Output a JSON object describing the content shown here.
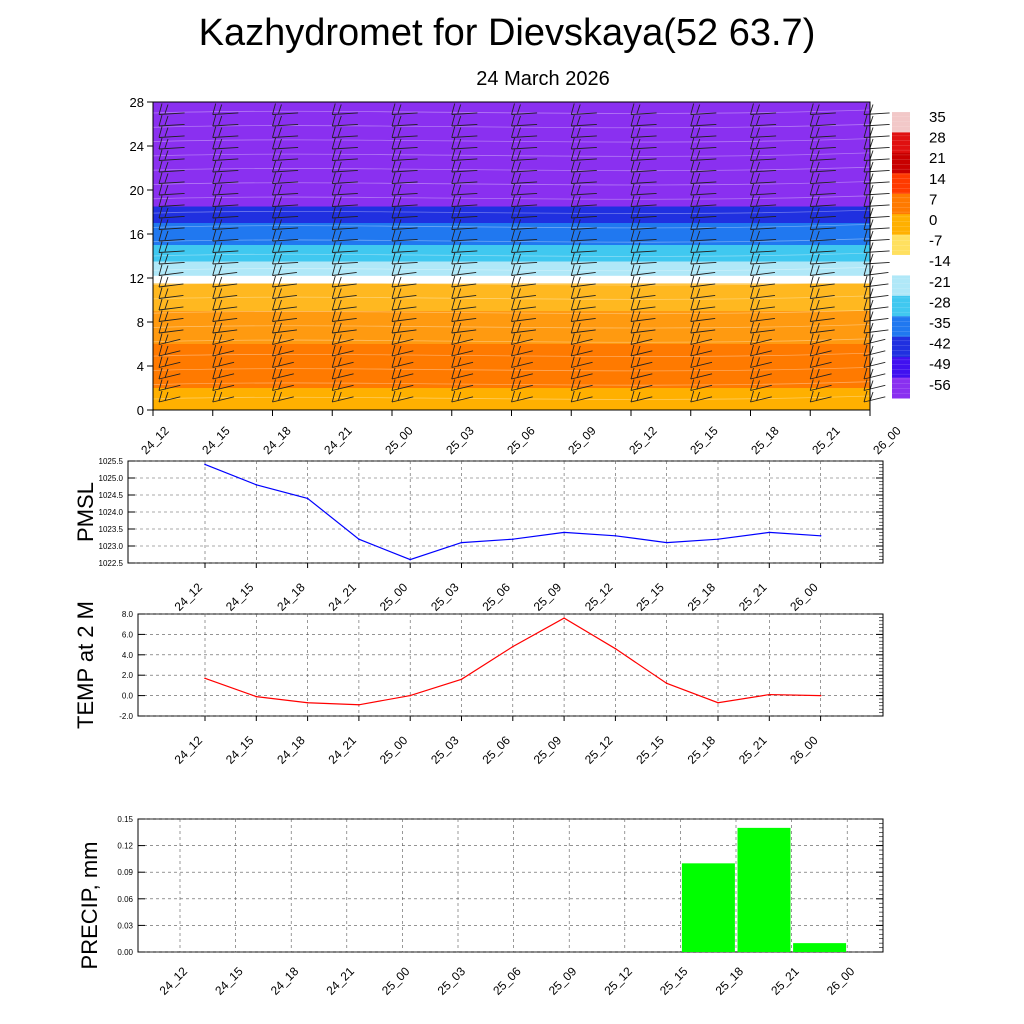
{
  "title": "Kazhydromet for Dievskaya(52 63.7)",
  "subtitle": "24 March 2026",
  "time_labels": [
    "24_12",
    "24_15",
    "24_18",
    "24_21",
    "25_00",
    "25_03",
    "25_06",
    "25_09",
    "25_12",
    "25_15",
    "25_18",
    "25_21",
    "26_00"
  ],
  "colorbar": {
    "labels": [
      "35",
      "28",
      "21",
      "14",
      "7",
      "0",
      "-7",
      "-14",
      "-21",
      "-28",
      "-35",
      "-42",
      "-49",
      "-56"
    ],
    "colors": [
      "#f2c8c8",
      "#e01010",
      "#c80000",
      "#ff3a00",
      "#ff7a00",
      "#ffb000",
      "#ffe060",
      "#ffffff",
      "#b0e8f8",
      "#40c8f0",
      "#2078f0",
      "#2030e0",
      "#4010f0",
      "#8a30f0"
    ]
  },
  "chart_data": [
    {
      "type": "heatmap",
      "name": "temperature-wind cross-section",
      "ylim": [
        0,
        28
      ],
      "yticks": [
        "0",
        "4",
        "8",
        "12",
        "16",
        "20",
        "24",
        "28"
      ],
      "x": [
        "24_12",
        "24_15",
        "24_18",
        "24_21",
        "25_00",
        "25_03",
        "25_06",
        "25_09",
        "25_12",
        "25_15",
        "25_18",
        "25_21",
        "26_00"
      ],
      "bands": [
        {
          "from": 0,
          "to": 2,
          "color": "#ffb000"
        },
        {
          "from": 2,
          "to": 6,
          "color": "#ff7a00"
        },
        {
          "from": 6,
          "to": 9,
          "color": "#ff9a10"
        },
        {
          "from": 9,
          "to": 11.5,
          "color": "#ffb820"
        },
        {
          "from": 11.5,
          "to": 12.2,
          "color": "#ffffff"
        },
        {
          "from": 12.2,
          "to": 13.5,
          "color": "#b0e8f8"
        },
        {
          "from": 13.5,
          "to": 15,
          "color": "#40c8f0"
        },
        {
          "from": 15,
          "to": 17,
          "color": "#2078f0"
        },
        {
          "from": 17,
          "to": 18.5,
          "color": "#2030e0"
        },
        {
          "from": 18.5,
          "to": 28,
          "color": "#8a30f0"
        }
      ]
    },
    {
      "type": "line",
      "ylabel": "PMSL",
      "x": [
        "24_12",
        "24_15",
        "24_18",
        "24_21",
        "25_00",
        "25_03",
        "25_06",
        "25_09",
        "25_12",
        "25_15",
        "25_18",
        "25_21",
        "26_00"
      ],
      "values": [
        1025.4,
        1024.8,
        1024.4,
        1023.2,
        1022.6,
        1023.1,
        1023.2,
        1023.4,
        1023.3,
        1023.1,
        1023.2,
        1023.4,
        1023.3
      ],
      "ylim": [
        1022.5,
        1025.5
      ],
      "yticks": [
        "1022.5",
        "1023.0",
        "1023.5",
        "1024.0",
        "1024.5",
        "1025.0",
        "1025.5"
      ],
      "color": "#0000ff"
    },
    {
      "type": "line",
      "ylabel": "TEMP at 2 M",
      "x": [
        "24_12",
        "24_15",
        "24_18",
        "24_21",
        "25_00",
        "25_03",
        "25_06",
        "25_09",
        "25_12",
        "25_15",
        "25_18",
        "25_21",
        "26_00"
      ],
      "values": [
        1.7,
        -0.1,
        -0.7,
        -0.9,
        0.0,
        1.6,
        4.8,
        7.6,
        4.6,
        1.2,
        -0.7,
        0.1,
        0.0
      ],
      "ylim": [
        -2.0,
        8.0
      ],
      "yticks": [
        "-2.0",
        "0.0",
        "2.0",
        "4.0",
        "6.0",
        "8.0"
      ],
      "color": "#ff0000"
    },
    {
      "type": "bar",
      "ylabel": "PRECIP, mm",
      "categories": [
        "24_12",
        "24_15",
        "24_18",
        "24_21",
        "25_00",
        "25_03",
        "25_06",
        "25_09",
        "25_12",
        "25_15",
        "25_18",
        "25_21",
        "26_00"
      ],
      "values": [
        0,
        0,
        0,
        0,
        0,
        0,
        0,
        0,
        0,
        0.1,
        0.14,
        0.01,
        0
      ],
      "ylim": [
        0,
        0.15
      ],
      "yticks": [
        "0.00",
        "0.03",
        "0.06",
        "0.09",
        "0.12",
        "0.15"
      ],
      "color": "#00ff00"
    }
  ]
}
